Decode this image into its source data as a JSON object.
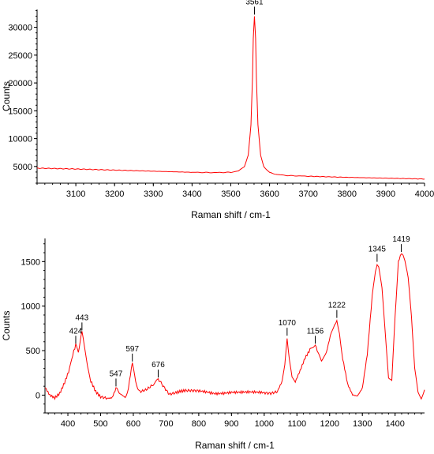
{
  "chart_data": [
    {
      "type": "line",
      "xlabel": "Raman shift / cm-1",
      "ylabel": "Counts",
      "xlim": [
        3000,
        4000
      ],
      "ylim": [
        2000,
        33200
      ],
      "xticks": [
        3100,
        3200,
        3300,
        3400,
        3500,
        3600,
        3700,
        3800,
        3900,
        4000
      ],
      "yticks": [
        5000,
        10000,
        15000,
        20000,
        25000,
        30000
      ],
      "grid": false,
      "color": "#ff0000",
      "series": [
        {
          "x": [
            3000,
            3100,
            3200,
            3300,
            3400,
            3450,
            3500,
            3520,
            3535,
            3545,
            3552,
            3556,
            3558,
            3561,
            3564,
            3566,
            3570,
            3577,
            3585,
            3600,
            3620,
            3650,
            3700,
            3800,
            3900,
            4000
          ],
          "y": [
            4700,
            4550,
            4350,
            4150,
            3950,
            3900,
            3950,
            4200,
            5000,
            7000,
            12500,
            21000,
            28000,
            32000,
            28000,
            21000,
            12500,
            7000,
            5000,
            3900,
            3550,
            3350,
            3250,
            3050,
            2900,
            2750
          ]
        }
      ],
      "annotations": [
        {
          "x": 3561,
          "y": 32000,
          "label": "3561"
        }
      ]
    },
    {
      "type": "line",
      "xlabel": "Raman shift / cm-1",
      "ylabel": "Counts",
      "xlim": [
        330,
        1490
      ],
      "ylim": [
        -200,
        1760
      ],
      "xticks": [
        400,
        500,
        600,
        700,
        800,
        900,
        1000,
        1100,
        1200,
        1300,
        1400
      ],
      "yticks": [
        0,
        500,
        1000,
        1500
      ],
      "grid": false,
      "color": "#ff0000",
      "series": [
        {
          "x": [
            330,
            345,
            360,
            375,
            390,
            405,
            415,
            424,
            432,
            443,
            450,
            460,
            470,
            485,
            500,
            520,
            535,
            547,
            560,
            575,
            585,
            597,
            607,
            620,
            640,
            660,
            676,
            690,
            710,
            730,
            760,
            800,
            850,
            900,
            950,
            1000,
            1020,
            1040,
            1055,
            1063,
            1070,
            1077,
            1085,
            1095,
            1110,
            1125,
            1140,
            1156,
            1165,
            1175,
            1190,
            1205,
            1215,
            1222,
            1230,
            1240,
            1255,
            1270,
            1285,
            1300,
            1315,
            1330,
            1340,
            1345,
            1350,
            1360,
            1370,
            1380,
            1390,
            1400,
            1410,
            1419,
            1430,
            1440,
            1450,
            1460,
            1470,
            1480,
            1490
          ],
          "y": [
            90,
            -10,
            -40,
            20,
            150,
            300,
            450,
            560,
            480,
            710,
            560,
            320,
            150,
            40,
            -10,
            -30,
            -20,
            80,
            10,
            -20,
            80,
            360,
            150,
            30,
            60,
            120,
            180,
            100,
            0,
            20,
            50,
            40,
            20,
            40,
            30,
            20,
            10,
            30,
            150,
            350,
            650,
            400,
            200,
            140,
            270,
            420,
            520,
            560,
            460,
            390,
            480,
            700,
            800,
            850,
            700,
            400,
            120,
            10,
            0,
            80,
            450,
            1100,
            1400,
            1480,
            1440,
            1200,
            700,
            200,
            150,
            900,
            1500,
            1590,
            1530,
            1300,
            900,
            300,
            30,
            -40,
            60
          ]
        }
      ],
      "annotations": [
        {
          "x": 424,
          "y": 560,
          "label": "424"
        },
        {
          "x": 443,
          "y": 710,
          "label": "443"
        },
        {
          "x": 547,
          "y": 80,
          "label": "547"
        },
        {
          "x": 597,
          "y": 360,
          "label": "597"
        },
        {
          "x": 676,
          "y": 180,
          "label": "676"
        },
        {
          "x": 1070,
          "y": 650,
          "label": "1070"
        },
        {
          "x": 1156,
          "y": 560,
          "label": "1156"
        },
        {
          "x": 1222,
          "y": 850,
          "label": "1222"
        },
        {
          "x": 1345,
          "y": 1480,
          "label": "1345"
        },
        {
          "x": 1419,
          "y": 1590,
          "label": "1419"
        }
      ]
    }
  ]
}
